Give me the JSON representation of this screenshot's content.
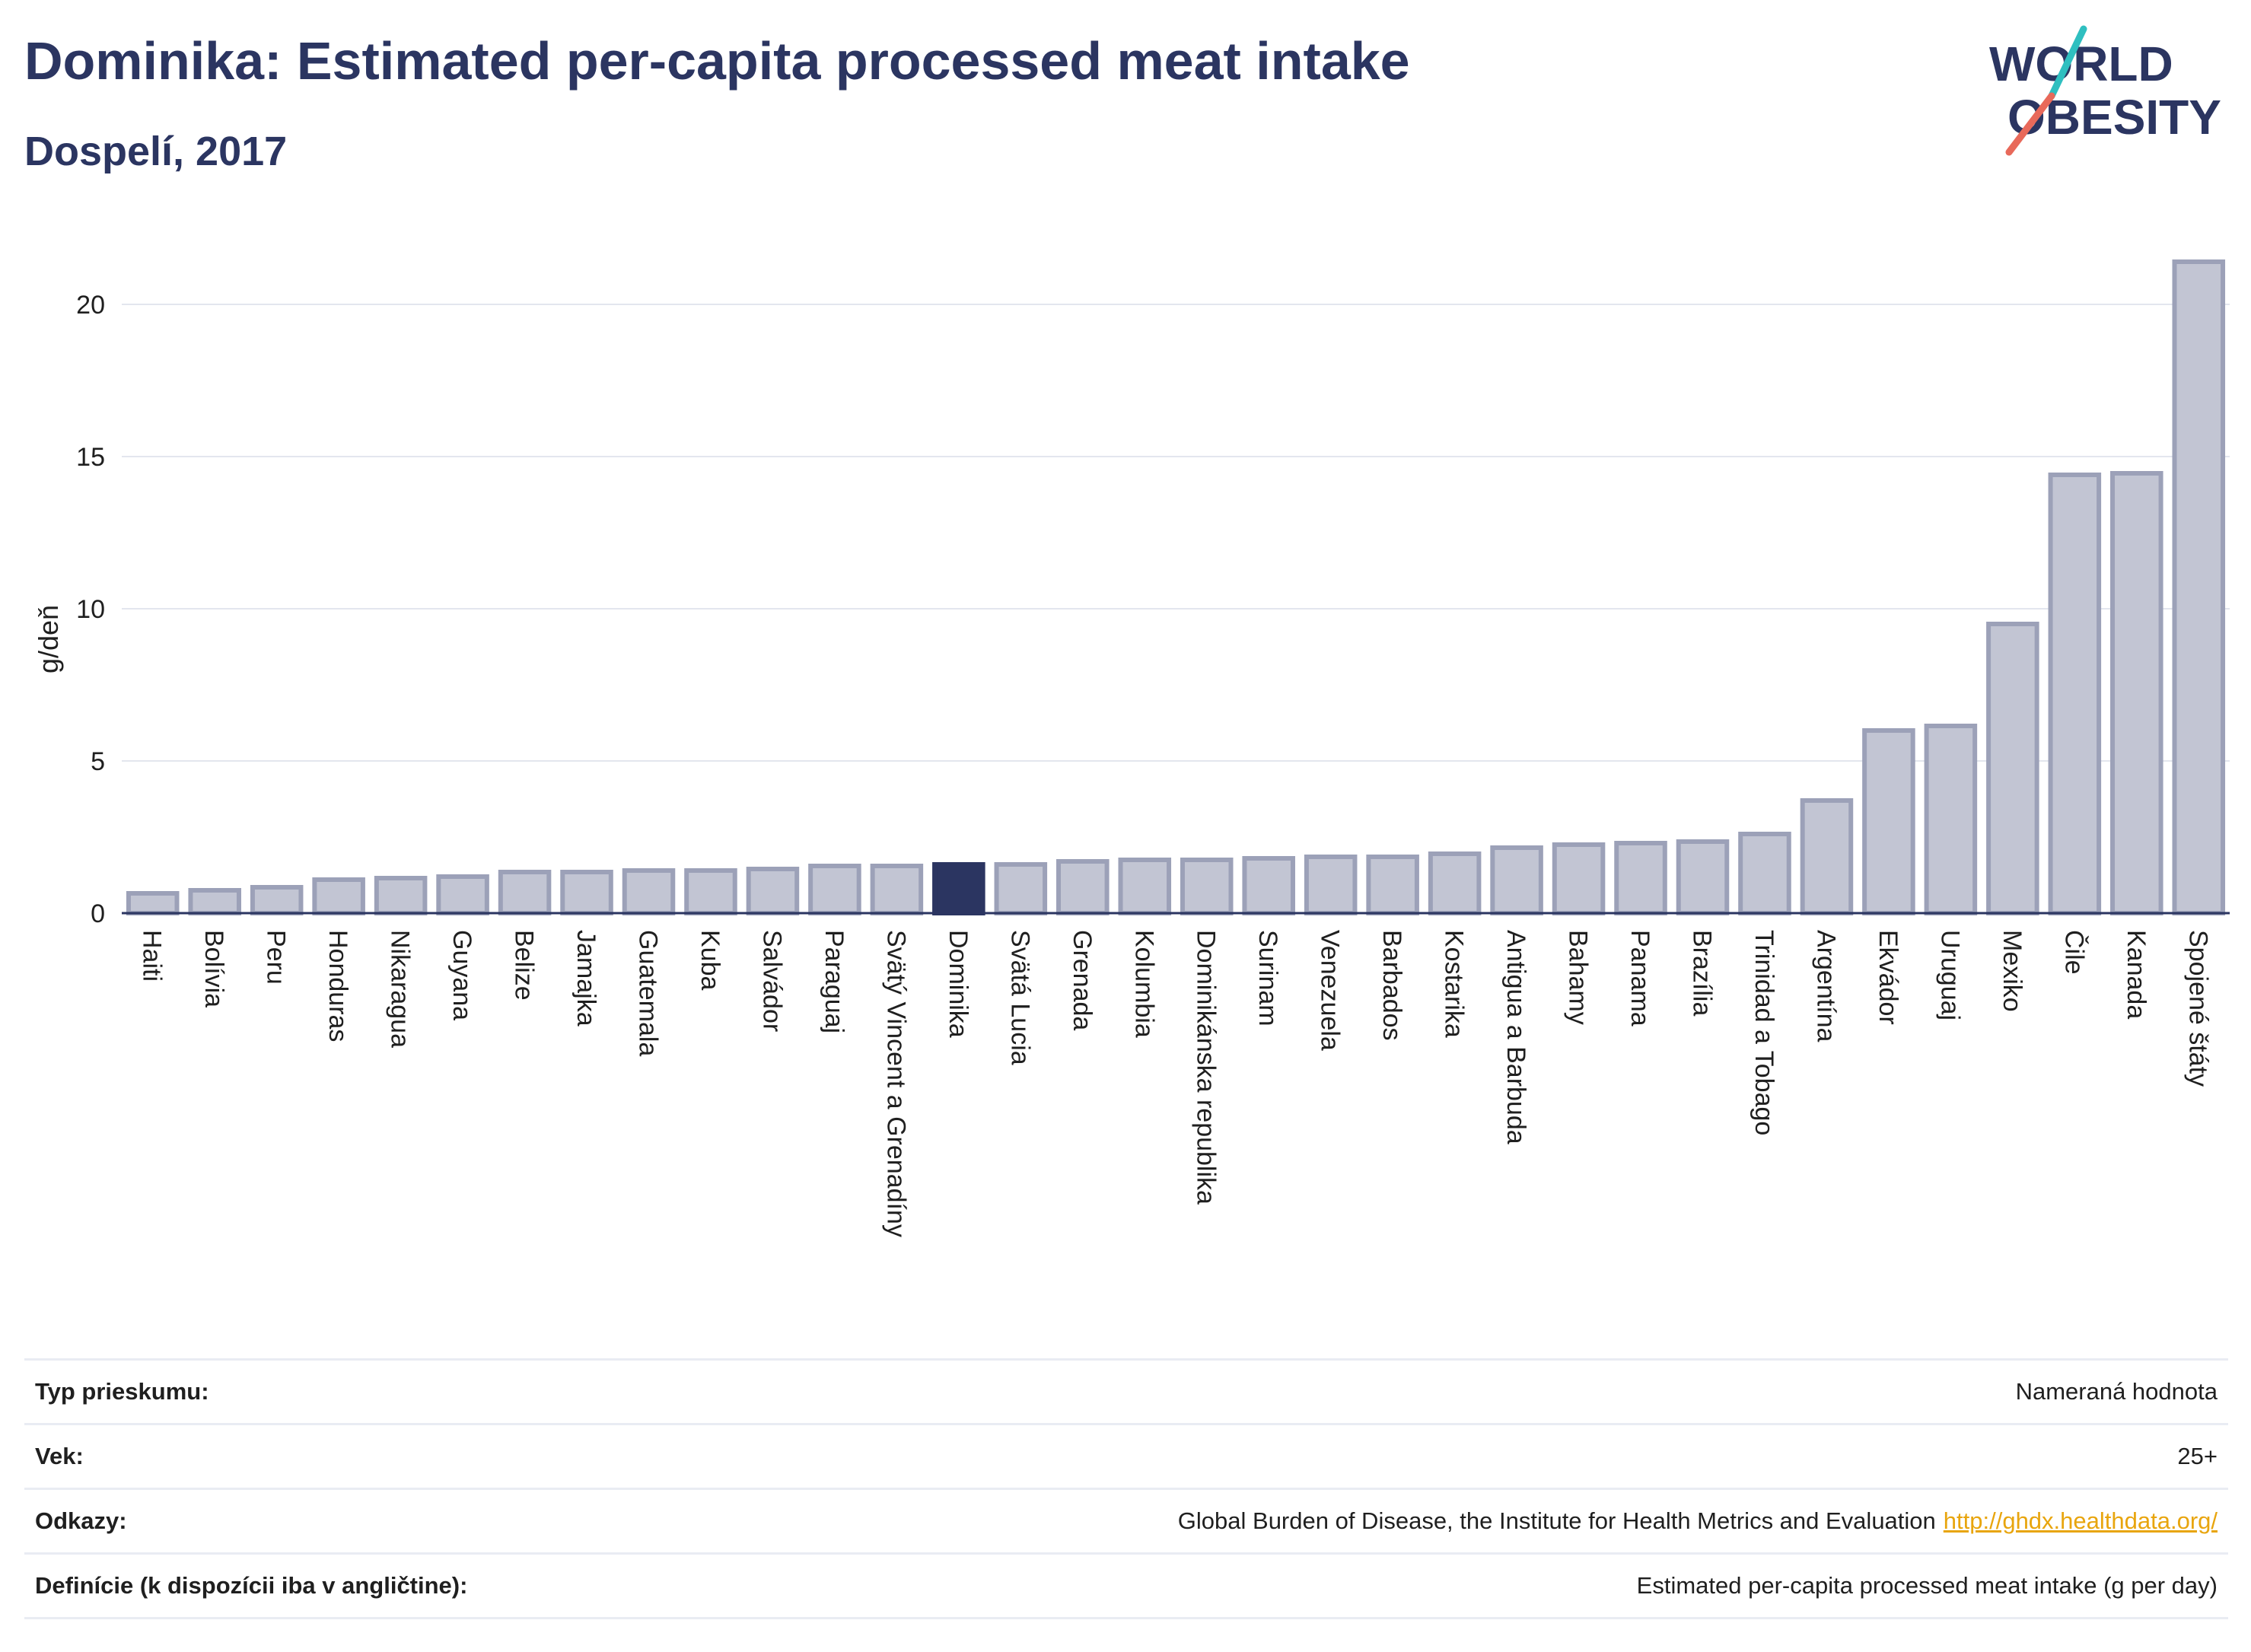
{
  "header": {
    "title": "Dominika: Estimated per-capita processed meat intake",
    "subtitle": "Dospelí, 2017"
  },
  "logo": {
    "line1": "WORLD",
    "line2": "OBESITY"
  },
  "colors": {
    "highlight": "#2b3561",
    "bar_fill": "#c2c5d3",
    "bar_stroke": "#9ca1b8",
    "accent_red": "#e8695a",
    "accent_teal": "#2fbfc0",
    "link": "#e8a50e"
  },
  "chart_data": {
    "type": "bar",
    "ylabel": "g/deň",
    "ylim": [
      0,
      22
    ],
    "yticks": [
      0,
      5,
      10,
      15,
      20
    ],
    "grid": true,
    "highlight": "Dominika",
    "categories": [
      "Haiti",
      "Bolívia",
      "Peru",
      "Honduras",
      "Nikaragua",
      "Guyana",
      "Belize",
      "Jamajka",
      "Guatemala",
      "Kuba",
      "Salvádor",
      "Paraguaj",
      "Svätý Vincent a Grenadíny",
      "Dominika",
      "Svätá Lucia",
      "Grenada",
      "Kolumbia",
      "Dominikánska republika",
      "Surinam",
      "Venezuela",
      "Barbados",
      "Kostarika",
      "Antigua a Barbuda",
      "Bahamy",
      "Panama",
      "Brazília",
      "Trinidad a Tobago",
      "Argentína",
      "Ekvádor",
      "Uruguaj",
      "Mexiko",
      "Čile",
      "Kanada",
      "Spojené štáty"
    ],
    "values": [
      0.65,
      0.75,
      0.85,
      1.1,
      1.15,
      1.2,
      1.35,
      1.35,
      1.4,
      1.4,
      1.45,
      1.55,
      1.55,
      1.6,
      1.6,
      1.7,
      1.75,
      1.75,
      1.8,
      1.85,
      1.85,
      1.95,
      2.15,
      2.25,
      2.3,
      2.35,
      2.6,
      3.7,
      6.0,
      6.15,
      9.5,
      14.4,
      14.45,
      21.4
    ]
  },
  "footer": {
    "rows": [
      {
        "key": "Typ prieskumu:",
        "value": "Nameraná hodnota"
      },
      {
        "key": "Vek:",
        "value": "25+"
      },
      {
        "key": "Odkazy:",
        "value": "Global Burden of Disease, the Institute for Health Metrics and Evaluation",
        "link": "http://ghdx.healthdata.org/"
      },
      {
        "key": "Definície (k dispozícii iba v angličtine):",
        "value": "Estimated per-capita processed meat intake (g per day)"
      }
    ]
  }
}
